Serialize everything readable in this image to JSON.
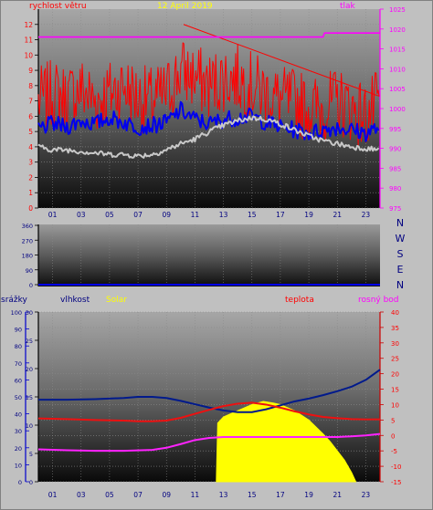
{
  "meta": {
    "date": "12 April 2019"
  },
  "colors": {
    "wind_max": "#ff0000",
    "wind_avg": "#0000ee",
    "pressure": "#ff00ff",
    "wind_dir": "#0000ee",
    "humidity": "#001a8c",
    "temperature": "#ee1010",
    "dewpoint": "#ff22ff",
    "solar": "#ffff00",
    "gray_line": "#c8c8c8",
    "left_axis": "#000000",
    "rain_axis": "#0000cc",
    "right_axis": "#ff00ff"
  },
  "labels": {
    "wind": "rychlost větru",
    "pressure": "tlak",
    "rain": "srážky",
    "humidity": "vlhkost",
    "solar": "Solar",
    "temperature": "teplota",
    "dewpoint": "rosný bod"
  },
  "compass": [
    "N",
    "W",
    "S",
    "E",
    "N"
  ],
  "x_ticks": [
    "01",
    "03",
    "05",
    "07",
    "09",
    "11",
    "13",
    "15",
    "17",
    "19",
    "21",
    "23"
  ],
  "chart_data": [
    {
      "id": "wind_pressure",
      "type": "line",
      "title": "12 April 2019",
      "x_unit": "hour",
      "xlim": [
        0,
        24
      ],
      "left_axis": {
        "label": "rychlost větru",
        "range": [
          0,
          13
        ],
        "ticks": [
          0,
          1,
          2,
          3,
          4,
          5,
          6,
          7,
          8,
          9,
          10,
          11,
          12
        ]
      },
      "right_axis": {
        "label": "tlak",
        "range": [
          975,
          1025
        ],
        "ticks": [
          975,
          980,
          985,
          990,
          995,
          1000,
          1005,
          1010,
          1015,
          1020,
          1025
        ]
      },
      "grid": true,
      "series": [
        {
          "name": "rychlost větru",
          "axis": "left",
          "color": "#ff0000",
          "x": [
            0,
            1,
            2,
            3,
            4,
            5,
            6,
            7,
            8,
            9,
            10,
            11,
            12,
            13,
            14,
            15,
            16,
            17,
            18,
            19,
            20,
            21,
            22,
            23,
            24
          ],
          "y": [
            7.0,
            7.5,
            7.2,
            7.8,
            7.0,
            7.5,
            8.0,
            7.2,
            7.0,
            7.5,
            9.0,
            8.5,
            8.0,
            8.5,
            8.5,
            8.0,
            7.5,
            7.0,
            7.0,
            6.5,
            6.5,
            7.0,
            6.5,
            6.0,
            7.0
          ]
        },
        {
          "name": "",
          "axis": "left",
          "color": "#0000ee",
          "x": [
            0,
            1,
            2,
            3,
            4,
            5,
            6,
            7,
            8,
            9,
            10,
            11,
            12,
            13,
            14,
            15,
            16,
            17,
            18,
            19,
            20,
            21,
            22,
            23,
            24
          ],
          "y": [
            5.2,
            5.5,
            5.3,
            5.7,
            5.5,
            5.9,
            5.6,
            5.3,
            5.4,
            5.6,
            6.4,
            5.8,
            5.5,
            5.8,
            5.9,
            6.0,
            5.6,
            5.3,
            5.1,
            4.9,
            5.1,
            5.3,
            5.1,
            4.9,
            5.3
          ]
        },
        {
          "name": "",
          "axis": "left",
          "color": "#c8c8c8",
          "x": [
            0,
            1,
            2,
            3,
            4,
            5,
            6,
            7,
            8,
            9,
            10,
            11,
            12,
            13,
            14,
            15,
            16,
            17,
            18,
            19,
            20,
            21,
            22,
            23,
            24
          ],
          "y": [
            4.0,
            3.8,
            3.8,
            3.7,
            3.6,
            3.5,
            3.5,
            3.4,
            3.5,
            3.8,
            4.2,
            4.5,
            5.0,
            5.4,
            5.7,
            5.9,
            5.8,
            5.5,
            5.1,
            4.7,
            4.4,
            4.2,
            4.0,
            3.9,
            3.8
          ]
        },
        {
          "name": "tlak",
          "axis": "right",
          "color": "#ff00ff",
          "x": [
            0,
            20,
            20.1,
            24
          ],
          "y": [
            1018,
            1018,
            1019,
            1019
          ]
        }
      ]
    },
    {
      "id": "wind_direction",
      "type": "line",
      "x_unit": "hour",
      "xlim": [
        0,
        24
      ],
      "y_axis": {
        "range": [
          0,
          360
        ],
        "ticks": [
          0,
          90,
          180,
          270,
          360
        ]
      },
      "series": [
        {
          "name": "",
          "color": "#0000ee",
          "x": [
            0,
            24
          ],
          "y": [
            0,
            0
          ]
        }
      ]
    },
    {
      "id": "humidity_temperature",
      "type": "line",
      "x_unit": "hour",
      "xlim": [
        0,
        24
      ],
      "rain_axis": {
        "label": "srážky",
        "range": [
          0,
          100
        ],
        "ticks": [
          0,
          10,
          20,
          30,
          40,
          50,
          60,
          70,
          80,
          90,
          100
        ]
      },
      "humidity_axis": {
        "label": "vlhkost",
        "range": [
          0,
          30
        ],
        "ticks": [
          0,
          5,
          10,
          15,
          20,
          25,
          30
        ]
      },
      "temperature_axis": {
        "label": "teplota",
        "range": [
          -15,
          40
        ],
        "ticks": [
          -15,
          -10,
          -5,
          0,
          5,
          10,
          15,
          20,
          25,
          30,
          35,
          40
        ]
      },
      "series": [
        {
          "name": "vlhkost",
          "axis": "humidity",
          "color": "#001a8c",
          "x": [
            0,
            2,
            4,
            6,
            7,
            8,
            9,
            10,
            11,
            12,
            13,
            14,
            15,
            16,
            17,
            18,
            19,
            20,
            21,
            22,
            23,
            24
          ],
          "y": [
            14.5,
            14.5,
            14.6,
            14.8,
            15.0,
            15.0,
            14.8,
            14.3,
            13.7,
            13.1,
            12.6,
            12.3,
            12.3,
            12.8,
            13.5,
            14.2,
            14.7,
            15.3,
            16.0,
            16.8,
            18.0,
            19.8
          ]
        },
        {
          "name": "teplota",
          "axis": "temperature",
          "color": "#ee1010",
          "x": [
            0,
            2,
            4,
            6,
            7,
            8,
            9,
            10,
            11,
            12,
            13,
            14,
            15,
            16,
            17,
            18,
            19,
            20,
            21,
            22,
            23,
            24
          ],
          "y": [
            5.5,
            5.3,
            5.0,
            4.8,
            4.6,
            4.6,
            4.8,
            5.7,
            7.0,
            8.3,
            9.5,
            10.3,
            10.6,
            10.0,
            9.0,
            7.8,
            6.8,
            6.0,
            5.6,
            5.3,
            5.2,
            5.2
          ]
        },
        {
          "name": "rosný bod",
          "axis": "temperature",
          "color": "#ff22ff",
          "x": [
            0,
            2,
            4,
            6,
            8,
            9,
            10,
            11,
            12,
            13,
            14,
            15,
            16,
            17,
            18,
            19,
            20,
            21,
            22,
            23,
            24
          ],
          "y": [
            -4.5,
            -4.8,
            -5.0,
            -5.0,
            -4.7,
            -4.0,
            -2.8,
            -1.5,
            -0.8,
            -0.5,
            -0.5,
            -0.5,
            -0.5,
            -0.5,
            -0.5,
            -0.5,
            -0.5,
            -0.5,
            -0.3,
            0.0,
            0.5
          ]
        },
        {
          "name": "Solar",
          "axis": "temperature",
          "color": "#ffff00",
          "fill": true,
          "x": [
            12.5,
            12.6,
            13.0,
            14.0,
            15.0,
            15.8,
            16.5,
            17.0,
            18.0,
            19.0,
            20.0,
            20.5,
            21.0,
            21.5,
            22.0,
            22.3
          ],
          "y": [
            -15,
            4.0,
            6.0,
            8.0,
            10.0,
            11.0,
            10.5,
            10.0,
            8.0,
            5.0,
            0.5,
            -2.0,
            -5.0,
            -8.0,
            -12.0,
            -15
          ]
        }
      ]
    }
  ]
}
